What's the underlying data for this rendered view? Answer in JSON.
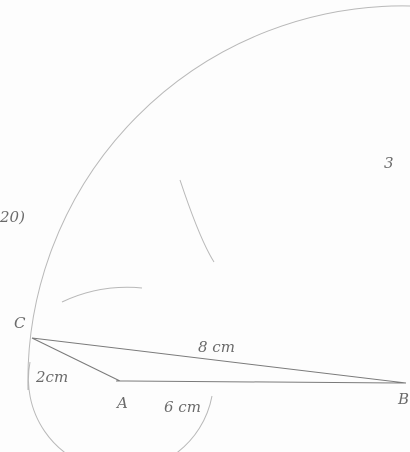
{
  "question_number": "20)",
  "side_label": "3",
  "points": {
    "c": "C",
    "a": "A",
    "b": "B"
  },
  "lengths": {
    "cb": "8 cm",
    "ca": "2cm",
    "ab": "6 cm"
  }
}
